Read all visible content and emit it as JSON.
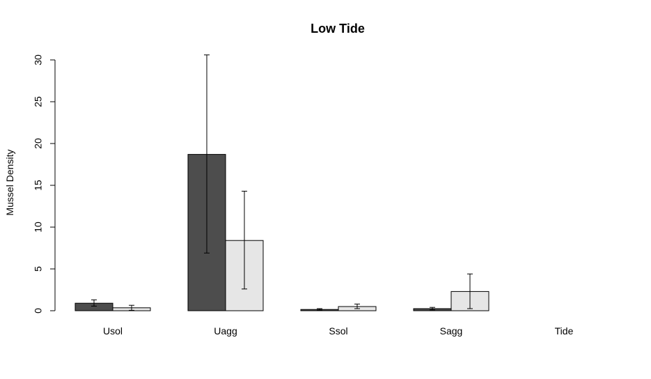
{
  "chart_data": {
    "type": "bar",
    "title": "Low Tide",
    "xlabel": "",
    "ylabel": "Mussel Density",
    "ylim": [
      0,
      30
    ],
    "yticks": [
      0,
      5,
      10,
      15,
      20,
      25,
      30
    ],
    "categories": [
      "Usol",
      "Uagg",
      "Ssol",
      "Sagg",
      "Tide"
    ],
    "grid": false,
    "series": [
      {
        "color": "#4d4d4d",
        "values": [
          0.9,
          18.7,
          0.15,
          0.25,
          0
        ],
        "error_low": [
          0.55,
          6.9,
          0.05,
          0.1,
          0
        ],
        "error_high": [
          1.3,
          30.6,
          0.25,
          0.4,
          0
        ]
      },
      {
        "color": "#e6e6e6",
        "values": [
          0.35,
          8.4,
          0.5,
          2.3,
          0
        ],
        "error_low": [
          0.05,
          2.6,
          0.25,
          0.25,
          0
        ],
        "error_high": [
          0.65,
          14.3,
          0.8,
          4.4,
          0
        ]
      }
    ]
  }
}
